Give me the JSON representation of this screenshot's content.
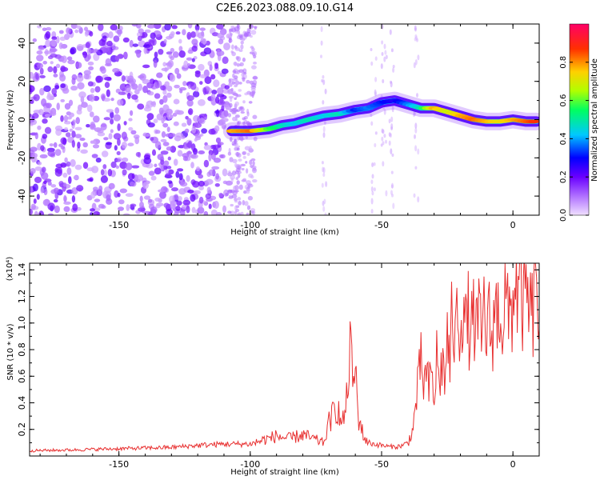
{
  "figure": {
    "title": "C2E6.2023.088.09.10.G14"
  },
  "chart_data": [
    {
      "type": "heatmap",
      "xlabel": "Height of straight line (km)",
      "ylabel": "Frequency (Hz)",
      "xlim": [
        -184,
        10
      ],
      "ylim": [
        -50,
        50
      ],
      "xticks": [
        -150,
        -100,
        -50,
        0
      ],
      "yticks": [
        -40,
        -20,
        0,
        20,
        40
      ],
      "colorbar": {
        "label": "Normalized spectral amplitude",
        "range": [
          0,
          1
        ],
        "ticks": [
          0.0,
          0.2,
          0.4,
          0.6,
          0.8
        ],
        "colors": [
          "#f0e0ff",
          "#b070ff",
          "#6a00ff",
          "#0000ff",
          "#00c8ff",
          "#00ff60",
          "#b0ff00",
          "#ffd000",
          "#ff3000",
          "#ff0066"
        ]
      },
      "ridge": {
        "x": [
          -107,
          -100,
          -93,
          -88,
          -83,
          -78,
          -72,
          -66,
          -60,
          -55,
          -50,
          -45,
          -40,
          -35,
          -30,
          -25,
          -20,
          -15,
          -10,
          -5,
          0,
          5,
          9
        ],
        "y": [
          -6,
          -6,
          -5,
          -3,
          -2,
          0,
          2,
          3,
          5,
          6,
          9,
          10,
          8,
          6,
          6,
          4,
          2,
          0,
          -1,
          -1,
          0,
          -1,
          -1
        ],
        "amplitude": [
          0.8,
          0.85,
          0.6,
          0.5,
          0.45,
          0.5,
          0.45,
          0.5,
          0.35,
          0.4,
          0.35,
          0.3,
          0.4,
          0.5,
          0.8,
          0.7,
          0.8,
          0.85,
          0.8,
          0.75,
          0.8,
          0.85,
          0.9
        ]
      }
    },
    {
      "type": "line",
      "xlabel": "Height of straight line (km)",
      "ylabel": "SNR (10 * v/v)",
      "scale_note": "(x10⁴)",
      "xlim": [
        -184,
        10
      ],
      "ylim": [
        0,
        14500
      ],
      "xticks": [
        -150,
        -100,
        -50,
        0
      ],
      "yticks": [
        2000,
        4000,
        6000,
        8000,
        10000,
        12000,
        14000
      ],
      "ytick_labels": [
        "0.2",
        "0.4",
        "0.6",
        "0.8",
        "1.0",
        "1.2",
        "1.4"
      ],
      "color": "#e83030",
      "series": [
        {
          "x": [
            -184,
            -170,
            -160,
            -150,
            -140,
            -130,
            -120,
            -110,
            -100,
            -95,
            -90,
            -85,
            -80,
            -75,
            -72,
            -70,
            -67,
            -65,
            -63,
            -62,
            -61,
            -60,
            -59,
            -58,
            -57,
            -55,
            -53,
            -50,
            -47,
            -44,
            -42,
            -40,
            -38,
            -37,
            -36,
            -35,
            -34,
            -33,
            -32,
            -31,
            -30,
            -29,
            -28,
            -27,
            -26,
            -25,
            -24,
            -23,
            -22,
            -21,
            -20,
            -19,
            -18,
            -17,
            -16,
            -15,
            -14,
            -13,
            -12,
            -11,
            -10,
            -9,
            -8,
            -7,
            -6,
            -5,
            -4,
            -3,
            -2,
            -1,
            0,
            1,
            2,
            3,
            4,
            5,
            6,
            7,
            8,
            9,
            10
          ],
          "y": [
            400,
            450,
            500,
            550,
            600,
            650,
            800,
            900,
            900,
            1200,
            1500,
            1300,
            1600,
            1200,
            1000,
            2500,
            3800,
            2200,
            4500,
            9000,
            5000,
            7000,
            3000,
            2500,
            1500,
            1000,
            900,
            800,
            700,
            700,
            800,
            1000,
            2000,
            4000,
            5500,
            7000,
            5500,
            6000,
            5000,
            6200,
            4000,
            7500,
            5200,
            7300,
            5500,
            9200,
            6500,
            11400,
            8000,
            11700,
            9500,
            12200,
            9300,
            10500,
            8600,
            10600,
            9300,
            10100,
            8800,
            10900,
            9400,
            10100,
            8600,
            11500,
            10200,
            11700,
            9500,
            12000,
            10300,
            10700,
            11500,
            13800,
            11500,
            13000,
            10800,
            12000,
            11300,
            10400,
            11000,
            14500,
            9500
          ]
        }
      ]
    }
  ]
}
